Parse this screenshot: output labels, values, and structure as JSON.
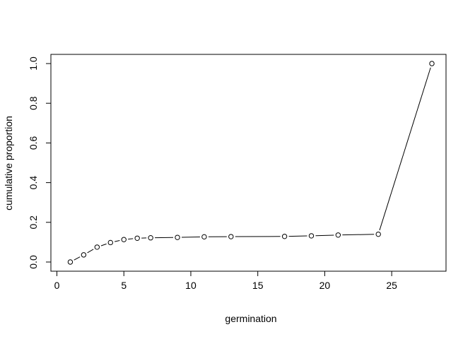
{
  "chart_data": {
    "type": "line",
    "title": "",
    "xlabel": "germination",
    "ylabel": "cumulative proportion",
    "xlim": [
      0,
      29
    ],
    "ylim": [
      0,
      1
    ],
    "x_ticks": [
      0,
      5,
      10,
      15,
      20,
      25
    ],
    "y_ticks": [
      0.0,
      0.2,
      0.4,
      0.6,
      0.8,
      1.0
    ],
    "x_tick_labels": [
      "0",
      "5",
      "10",
      "15",
      "20",
      "25"
    ],
    "y_tick_labels": [
      "0.0",
      "0.2",
      "0.4",
      "0.6",
      "0.8",
      "1.0"
    ],
    "grid": false,
    "series": [
      {
        "x": [
          1,
          2,
          3,
          4,
          5,
          6,
          7,
          9,
          11,
          13,
          17,
          19,
          21,
          24,
          28
        ],
        "y": [
          0.0,
          0.036,
          0.075,
          0.098,
          0.113,
          0.12,
          0.122,
          0.124,
          0.127,
          0.128,
          0.129,
          0.132,
          0.136,
          0.14,
          1.0
        ]
      }
    ]
  }
}
